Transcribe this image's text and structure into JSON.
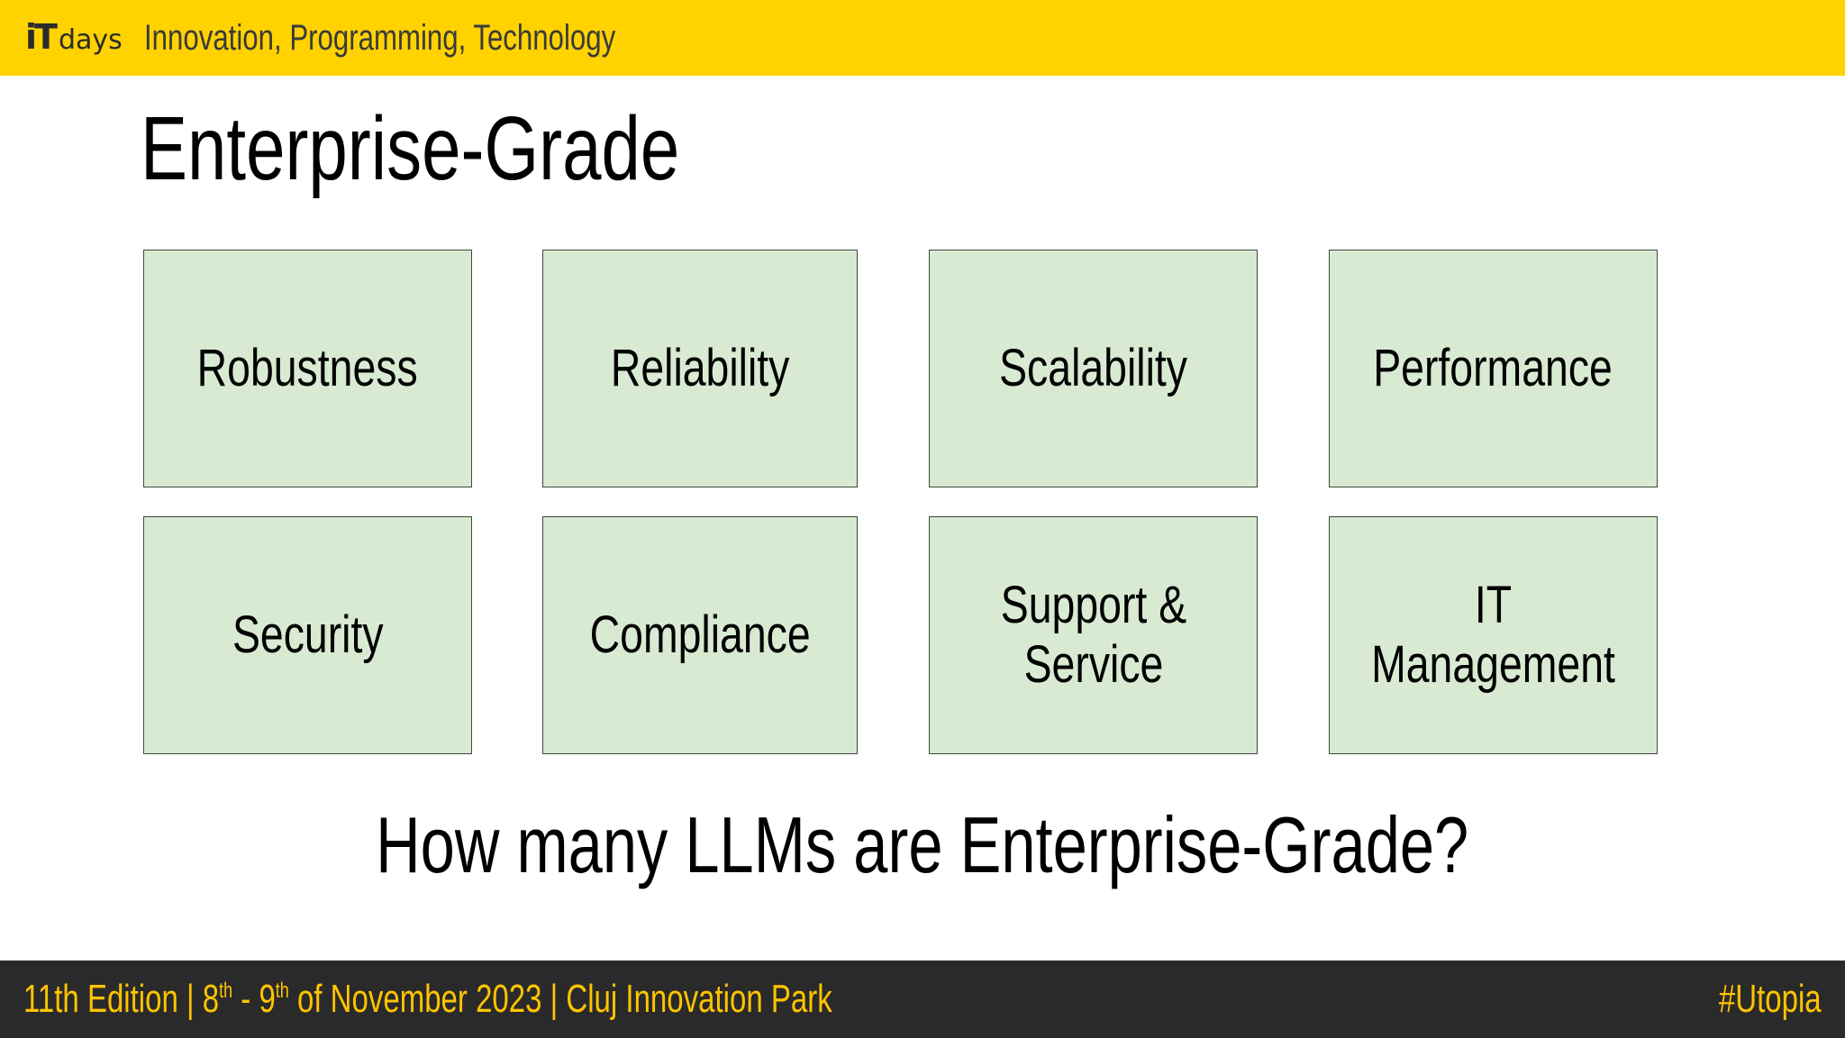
{
  "header": {
    "logo_it": "iT",
    "logo_days": "days",
    "tagline": "Innovation, Programming, Technology"
  },
  "title": "Enterprise-Grade",
  "boxes": [
    {
      "label": "Robustness"
    },
    {
      "label": "Reliability"
    },
    {
      "label": "Scalability"
    },
    {
      "label": "Performance"
    },
    {
      "label": "Security"
    },
    {
      "label": "Compliance"
    },
    {
      "label": "Support &\nService"
    },
    {
      "label": "IT Management"
    }
  ],
  "question": "How many LLMs are Enterprise-Grade?",
  "footer": {
    "edition": "11th Edition  |  8",
    "sup1": "th",
    "dash": " - 9",
    "sup2": "th",
    "date_rest": " of November 2023  |  Cluj Innovation Park",
    "hashtag": "#Utopia"
  },
  "colors": {
    "header_bg": "#ffd200",
    "box_bg": "#d9ead3",
    "footer_bg": "#2a2a2a",
    "footer_text": "#ffc400"
  }
}
